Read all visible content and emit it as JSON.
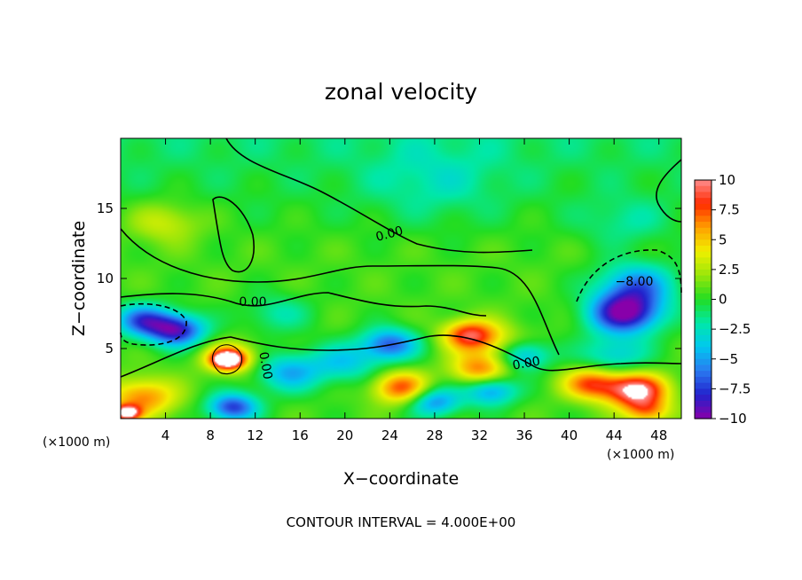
{
  "chart_data": {
    "type": "heatmap",
    "title": "zonal velocity",
    "xlabel": "X−coordinate",
    "ylabel": "Z−coordinate",
    "x_unit_note_left": "(×1000 m)",
    "x_unit_note_right": "(×1000 m)",
    "xlim": [
      0,
      50
    ],
    "ylim": [
      0,
      20
    ],
    "x_ticks": [
      4,
      8,
      12,
      16,
      20,
      24,
      28,
      32,
      36,
      40,
      44,
      48
    ],
    "x_tick_labels": [
      "4",
      "8",
      "12",
      "16",
      "20",
      "24",
      "28",
      "32",
      "36",
      "40",
      "44",
      "48"
    ],
    "y_ticks": [
      5,
      10,
      15
    ],
    "y_tick_labels": [
      "5",
      "10",
      "15"
    ],
    "colorbar": {
      "range": [
        -10,
        10
      ],
      "ticks": [
        10,
        7.5,
        5,
        2.5,
        0,
        -2.5,
        -5,
        -7.5,
        -10
      ],
      "tick_labels": [
        "10",
        "7.5",
        "5",
        "2.5",
        "0",
        "−2.5",
        "−5",
        "−7.5",
        "−10"
      ],
      "colors": [
        "#8800aa",
        "#2222cc",
        "#2a7af0",
        "#00c8f0",
        "#00e8a8",
        "#22dd22",
        "#99e60a",
        "#f0f000",
        "#ffa000",
        "#ff2a00",
        "#ff8c8c"
      ]
    },
    "contour_interval": 4.0,
    "contour_labels": [
      "0.00",
      "0.00",
      "0.00",
      "0.00",
      "−8.00"
    ],
    "footer": "CONTOUR INTERVAL = 4.000E+00",
    "features": [
      {
        "x": 5,
        "z": 6.3,
        "value": -9,
        "r": 2.5
      },
      {
        "x": 2,
        "z": 7,
        "value": -7,
        "r": 2.5
      },
      {
        "x": 9.5,
        "z": 4.2,
        "value": 10,
        "r": 1.3
      },
      {
        "x": 9.8,
        "z": 4.3,
        "value": 6,
        "r": 2.4
      },
      {
        "x": 10,
        "z": 0.8,
        "value": -8,
        "r": 2.2
      },
      {
        "x": 2,
        "z": 1.5,
        "value": 6,
        "r": 3
      },
      {
        "x": 0.5,
        "z": 0.4,
        "value": 10,
        "r": 1.2
      },
      {
        "x": 15,
        "z": 3.3,
        "value": -5,
        "r": 3
      },
      {
        "x": 20,
        "z": 4,
        "value": -4,
        "r": 3
      },
      {
        "x": 24,
        "z": 5.3,
        "value": -7,
        "r": 2.5
      },
      {
        "x": 25,
        "z": 2.2,
        "value": 7,
        "r": 2.5
      },
      {
        "x": 31,
        "z": 6,
        "value": 7,
        "r": 2.3
      },
      {
        "x": 32,
        "z": 3.5,
        "value": 6,
        "r": 2.5
      },
      {
        "x": 33,
        "z": 2,
        "value": -6,
        "r": 2.3
      },
      {
        "x": 28,
        "z": 1.2,
        "value": -6,
        "r": 2.3
      },
      {
        "x": 36,
        "z": 4.5,
        "value": -5,
        "r": 2.3
      },
      {
        "x": 14,
        "z": 7.5,
        "value": -2.5,
        "r": 3
      },
      {
        "x": 4,
        "z": 14,
        "value": 3,
        "r": 3.2
      },
      {
        "x": 45,
        "z": 7.5,
        "value": -10,
        "r": 3.2
      },
      {
        "x": 46,
        "z": 9.5,
        "value": -6,
        "r": 3.5
      },
      {
        "x": 46,
        "z": 2,
        "value": 10,
        "r": 2.7
      },
      {
        "x": 42,
        "z": 2.5,
        "value": 7,
        "r": 2.5
      },
      {
        "x": 44,
        "z": 4.5,
        "value": -4,
        "r": 3
      },
      {
        "x": 47,
        "z": 0.5,
        "value": 5,
        "r": 2
      },
      {
        "x": 28,
        "z": 17,
        "value": -2,
        "r": 6
      },
      {
        "x": 45,
        "z": 14,
        "value": -2,
        "r": 4
      },
      {
        "x": 33,
        "z": 5.5,
        "value": 3,
        "r": 3
      }
    ]
  }
}
